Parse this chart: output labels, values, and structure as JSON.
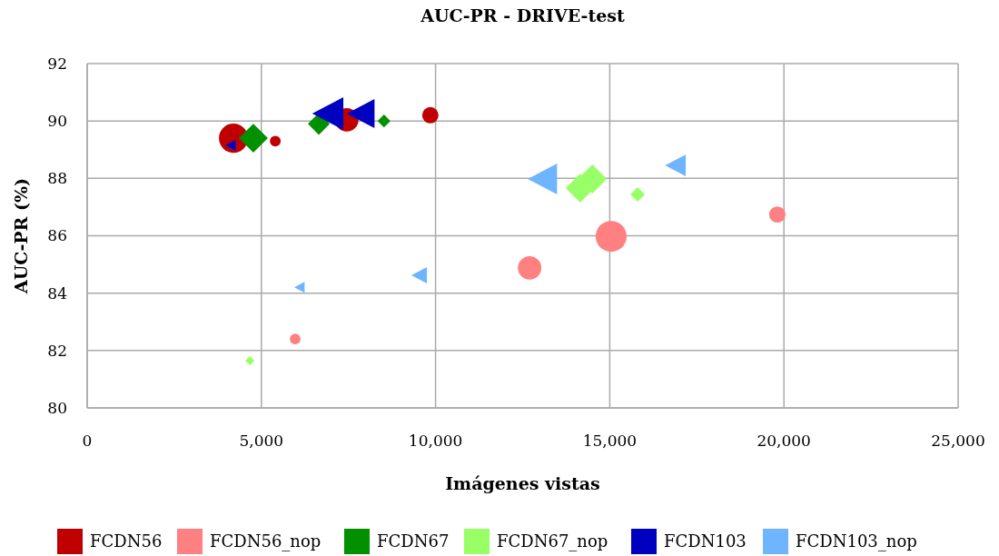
{
  "chart_data": {
    "type": "bubble",
    "title": "AUC-PR - DRIVE-test",
    "xlabel": "Imágenes vistas",
    "ylabel": "AUC-PR (%)",
    "xlim": [
      0,
      25000
    ],
    "xticks": [
      {
        "value": 0,
        "label": "0"
      },
      {
        "value": 5000,
        "label": "5,000"
      },
      {
        "value": 10000,
        "label": "10,000"
      },
      {
        "value": 15000,
        "label": "15,000"
      },
      {
        "value": 20000,
        "label": "20,000"
      },
      {
        "value": 25000,
        "label": "25,000"
      }
    ],
    "ylim": [
      80,
      92
    ],
    "yticks": [
      80,
      82,
      84,
      86,
      88,
      90,
      92
    ],
    "grid": true,
    "legend": "bottom",
    "series": [
      {
        "name": "FCDN56",
        "color": "#c00000",
        "marker": "circle",
        "x": [
          4200,
          5400,
          7450,
          9850
        ],
        "values": [
          89.4,
          89.3,
          90.04,
          90.2
        ],
        "sizes": [
          0.89,
          0.12,
          0.58,
          0.28
        ]
      },
      {
        "name": "FCDN56_nop",
        "color": "#ff8080",
        "marker": "circle",
        "x": [
          5970,
          12700,
          15040,
          19810
        ],
        "values": [
          82.4,
          84.88,
          85.98,
          86.74
        ],
        "sizes": [
          0.12,
          0.58,
          1,
          0.28
        ]
      },
      {
        "name": "FCDN67",
        "color": "#009000",
        "marker": "diamond",
        "x": [
          4770,
          6650,
          8520
        ],
        "values": [
          89.4,
          89.9,
          90.0
        ],
        "sizes": [
          0.56,
          0.32,
          0.11
        ]
      },
      {
        "name": "FCDN67_nop",
        "color": "#99ff66",
        "marker": "diamond",
        "x": [
          4670,
          14150,
          14500,
          15800
        ],
        "values": [
          81.65,
          87.66,
          87.98,
          87.44
        ],
        "sizes": [
          0.055,
          0.56,
          0.56,
          0.14
        ]
      },
      {
        "name": "FCDN103",
        "color": "#0000c0",
        "marker": "triangle",
        "x": [
          4120,
          6930,
          7870
        ],
        "values": [
          89.15,
          90.26,
          90.26
        ],
        "sizes": [
          0.075,
          0.68,
          0.54
        ]
      },
      {
        "name": "FCDN103_nop",
        "color": "#6eb4ff",
        "marker": "triangle",
        "x": [
          6100,
          9540,
          13090,
          16900
        ],
        "values": [
          84.2,
          84.62,
          87.98,
          88.45
        ],
        "sizes": [
          0.075,
          0.17,
          0.6,
          0.3
        ]
      }
    ]
  }
}
